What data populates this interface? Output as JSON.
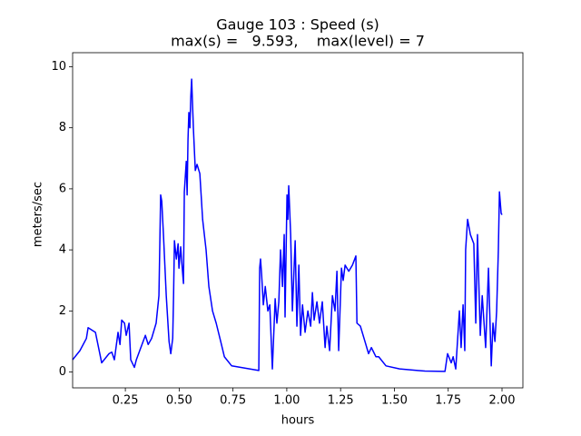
{
  "chart_data": {
    "type": "line",
    "title": [
      "Gauge 103 : Speed (s)",
      "max(s) =   9.593,    max(level) = 7"
    ],
    "xlabel": "hours",
    "ylabel": "meters/sec",
    "color": "#0000ff",
    "x": [
      0.005,
      0.039,
      0.069,
      0.077,
      0.111,
      0.14,
      0.174,
      0.187,
      0.199,
      0.216,
      0.225,
      0.233,
      0.246,
      0.254,
      0.267,
      0.275,
      0.292,
      0.301,
      0.322,
      0.343,
      0.356,
      0.372,
      0.393,
      0.406,
      0.414,
      0.419,
      0.427,
      0.44,
      0.453,
      0.461,
      0.47,
      0.474,
      0.478,
      0.487,
      0.495,
      0.499,
      0.507,
      0.512,
      0.52,
      0.524,
      0.533,
      0.537,
      0.541,
      0.545,
      0.55,
      0.554,
      0.558,
      0.566,
      0.575,
      0.583,
      0.596,
      0.609,
      0.625,
      0.638,
      0.655,
      0.672,
      0.693,
      0.71,
      0.744,
      0.87,
      0.874,
      0.878,
      0.883,
      0.891,
      0.9,
      0.912,
      0.921,
      0.933,
      0.946,
      0.954,
      0.963,
      0.971,
      0.98,
      0.988,
      0.992,
      1.001,
      1.005,
      1.009,
      1.018,
      1.026,
      1.039,
      1.047,
      1.056,
      1.064,
      1.073,
      1.085,
      1.098,
      1.111,
      1.119,
      1.127,
      1.14,
      1.152,
      1.165,
      1.178,
      1.186,
      1.199,
      1.212,
      1.224,
      1.233,
      1.241,
      1.254,
      1.262,
      1.271,
      1.288,
      1.305,
      1.321,
      1.326,
      1.342,
      1.359,
      1.38,
      1.393,
      1.414,
      1.427,
      1.461,
      1.524,
      1.608,
      1.642,
      1.735,
      1.747,
      1.764,
      1.773,
      1.785,
      1.802,
      1.81,
      1.819,
      1.827,
      1.831,
      1.84,
      1.853,
      1.869,
      1.878,
      1.886,
      1.899,
      1.908,
      1.924,
      1.937,
      1.95,
      1.958,
      1.967,
      1.975,
      1.983,
      1.988,
      1.996,
      2.0
    ],
    "values": [
      0.4,
      0.7,
      1.1,
      1.45,
      1.3,
      0.3,
      0.6,
      0.65,
      0.4,
      1.3,
      0.9,
      1.7,
      1.6,
      1.2,
      1.6,
      0.4,
      0.15,
      0.4,
      0.8,
      1.2,
      0.9,
      1.1,
      1.6,
      2.5,
      5.8,
      5.6,
      4.5,
      2.5,
      1.0,
      0.6,
      1.1,
      2.5,
      4.3,
      3.7,
      4.2,
      3.4,
      4.1,
      3.6,
      2.9,
      5.9,
      6.9,
      5.8,
      7.6,
      8.5,
      8.0,
      9.0,
      9.593,
      8.0,
      6.6,
      6.8,
      6.5,
      5.0,
      4.0,
      2.8,
      2.0,
      1.6,
      1.0,
      0.5,
      0.2,
      0.05,
      3.4,
      3.7,
      3.2,
      2.2,
      2.8,
      2.0,
      2.2,
      0.1,
      2.4,
      1.6,
      2.3,
      4.0,
      2.8,
      4.5,
      1.8,
      5.8,
      5.0,
      6.1,
      4.5,
      2.0,
      4.3,
      1.5,
      3.5,
      1.2,
      2.2,
      1.3,
      2.0,
      1.5,
      2.6,
      1.7,
      2.3,
      1.6,
      2.3,
      0.8,
      1.5,
      0.7,
      2.5,
      2.0,
      3.3,
      0.7,
      3.4,
      3.0,
      3.5,
      3.3,
      3.5,
      3.8,
      1.6,
      1.5,
      1.1,
      0.6,
      0.8,
      0.5,
      0.5,
      0.2,
      0.1,
      0.05,
      0.03,
      0.02,
      0.6,
      0.3,
      0.5,
      0.1,
      2.0,
      0.8,
      2.2,
      0.7,
      4.0,
      5.0,
      4.5,
      4.2,
      1.6,
      4.5,
      1.2,
      2.5,
      0.8,
      3.4,
      0.2,
      1.6,
      1.0,
      2.0,
      4.0,
      5.9,
      5.2,
      5.15
    ],
    "xlim": [
      0.005,
      2.097
    ],
    "ylim": [
      -0.52,
      10.46
    ],
    "xticks": [
      0.25,
      {
        "value": 0.5,
        "label": "0.50"
      },
      0.75,
      {
        "value": 1.0,
        "label": "1.00"
      },
      1.25,
      {
        "value": 1.5,
        "label": "1.50"
      },
      1.75,
      {
        "value": 2.0,
        "label": "2.00"
      }
    ],
    "yticks": [
      0,
      2,
      4,
      6,
      8,
      10
    ]
  }
}
